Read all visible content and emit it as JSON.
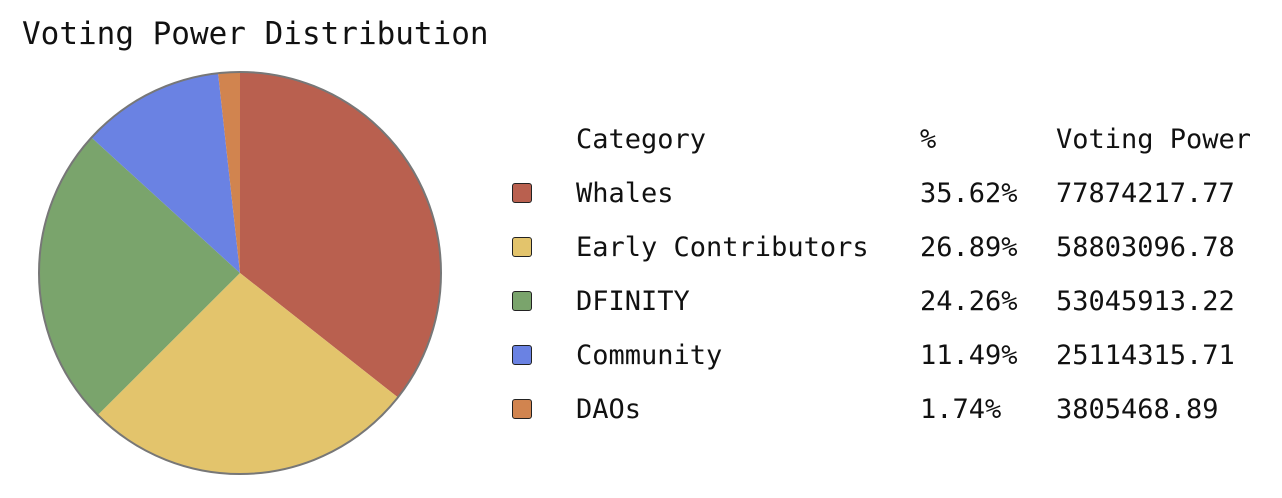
{
  "chart_data": {
    "type": "pie",
    "title": "Voting Power Distribution",
    "legend": {
      "position": "right",
      "headers": {
        "category": "Category",
        "percent": "%",
        "value": "Voting Power"
      }
    },
    "slices": [
      {
        "label": "Whales",
        "percent": 35.62,
        "percent_label": "35.62%",
        "value": 77874217.77,
        "value_label": "77874217.77",
        "color": "#b9604f"
      },
      {
        "label": "Early Contributors",
        "percent": 26.89,
        "percent_label": "26.89%",
        "value": 58803096.78,
        "value_label": "58803096.78",
        "color": "#e3c46c"
      },
      {
        "label": "DFINITY",
        "percent": 24.26,
        "percent_label": "24.26%",
        "value": 53045913.22,
        "value_label": "53045913.22",
        "color": "#7aa46c"
      },
      {
        "label": "Community",
        "percent": 11.49,
        "percent_label": "11.49%",
        "value": 25114315.71,
        "value_label": "25114315.71",
        "color": "#6a82e3"
      },
      {
        "label": "DAOs",
        "percent": 1.74,
        "percent_label": "1.74%",
        "value": 3805468.89,
        "value_label": "3805468.89",
        "color": "#d1844f"
      }
    ]
  }
}
